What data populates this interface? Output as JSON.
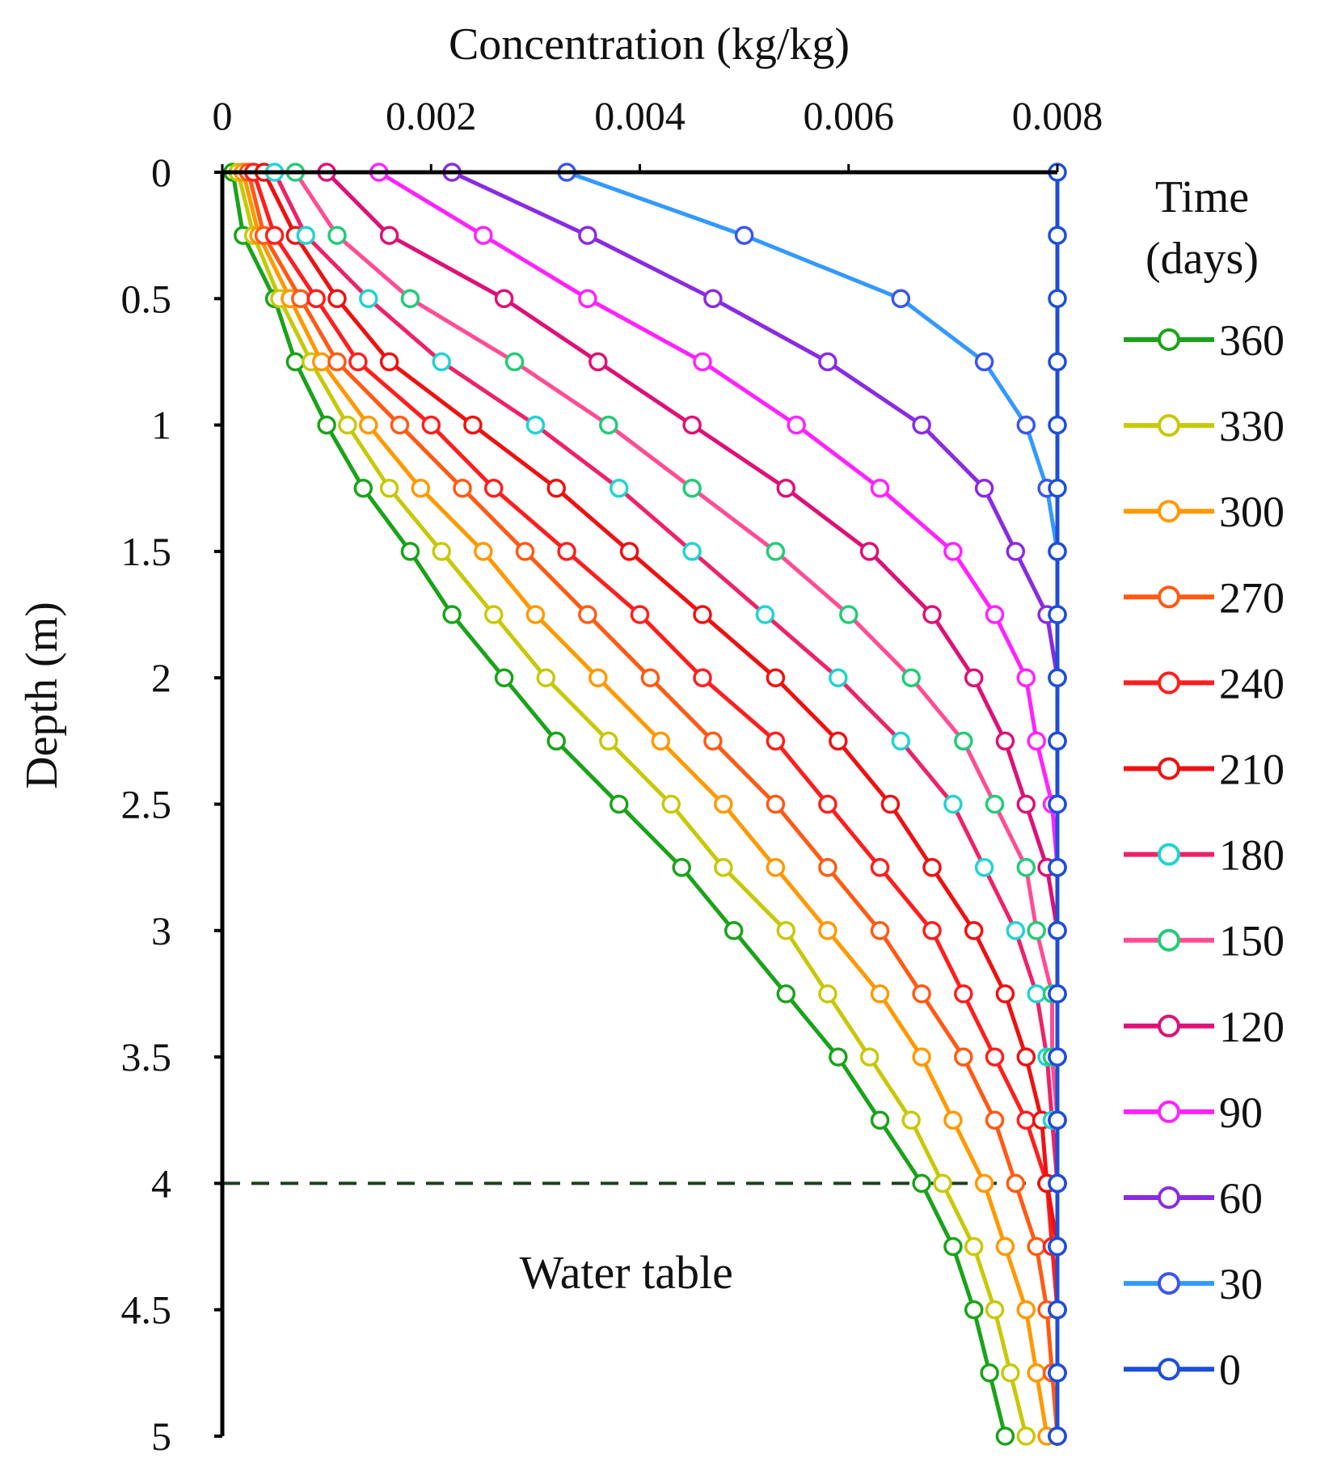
{
  "chart_data": {
    "type": "line",
    "title": "",
    "xlabel": "Concentration (kg/kg)",
    "ylabel": "Depth (m)",
    "xlim": [
      0,
      0.008
    ],
    "ylim": [
      0,
      5
    ],
    "x_ticks": [
      {
        "value": 0,
        "label": "0"
      },
      {
        "value": 0.002,
        "label": "0.002"
      },
      {
        "value": 0.004,
        "label": "0.004"
      },
      {
        "value": 0.006,
        "label": "0.006"
      },
      {
        "value": 0.008,
        "label": "0.008"
      }
    ],
    "y_ticks": [
      {
        "value": 0,
        "label": "0"
      },
      {
        "value": 0.5,
        "label": "0.5"
      },
      {
        "value": 1,
        "label": "1"
      },
      {
        "value": 1.5,
        "label": "1.5"
      },
      {
        "value": 2,
        "label": "2"
      },
      {
        "value": 2.5,
        "label": "2.5"
      },
      {
        "value": 3,
        "label": "3"
      },
      {
        "value": 3.5,
        "label": "3.5"
      },
      {
        "value": 4,
        "label": "4"
      },
      {
        "value": 4.5,
        "label": "4.5"
      },
      {
        "value": 5,
        "label": "5"
      }
    ],
    "legend_title": [
      "Time",
      "(days)"
    ],
    "legend_position": "right",
    "depths": [
      0,
      0.25,
      0.5,
      0.75,
      1,
      1.25,
      1.5,
      1.75,
      2,
      2.25,
      2.5,
      2.75,
      3,
      3.25,
      3.5,
      3.75,
      4,
      4.25,
      4.5,
      4.75,
      5
    ],
    "water_table": {
      "depth": 4,
      "label": "Water table",
      "color": "#1f3f1f"
    },
    "series": [
      {
        "name": "360",
        "color": "#1aa31a",
        "marker_color": "#1aa31a",
        "values": [
          0.0001,
          0.0002,
          0.0005,
          0.0007,
          0.001,
          0.00135,
          0.0018,
          0.0022,
          0.0027,
          0.0032,
          0.0038,
          0.0044,
          0.0049,
          0.0054,
          0.0059,
          0.0063,
          0.0067,
          0.007,
          0.0072,
          0.00735,
          0.0075
        ]
      },
      {
        "name": "330",
        "color": "#c8c80a",
        "marker_color": "#c8c80a",
        "values": [
          0.00015,
          0.0003,
          0.00055,
          0.00085,
          0.0012,
          0.0016,
          0.0021,
          0.0026,
          0.0031,
          0.0037,
          0.0043,
          0.0048,
          0.0054,
          0.0058,
          0.0062,
          0.0066,
          0.0069,
          0.0072,
          0.0074,
          0.00755,
          0.0077
        ]
      },
      {
        "name": "300",
        "color": "#ff9900",
        "marker_color": "#ff9900",
        "values": [
          0.0002,
          0.00035,
          0.00065,
          0.00095,
          0.0014,
          0.0019,
          0.0025,
          0.003,
          0.0036,
          0.0042,
          0.0048,
          0.0053,
          0.0058,
          0.0063,
          0.0067,
          0.007,
          0.0073,
          0.0075,
          0.0077,
          0.0078,
          0.0079
        ]
      },
      {
        "name": "270",
        "color": "#ff5a14",
        "marker_color": "#ff5a14",
        "values": [
          0.00025,
          0.0004,
          0.00075,
          0.0011,
          0.0017,
          0.0023,
          0.0029,
          0.0035,
          0.0041,
          0.0047,
          0.0053,
          0.0058,
          0.0063,
          0.0067,
          0.0071,
          0.0074,
          0.0076,
          0.0078,
          0.0079,
          0.00795,
          0.008
        ]
      },
      {
        "name": "240",
        "color": "#ff1e1e",
        "marker_color": "#ff1e1e",
        "values": [
          0.0003,
          0.0005,
          0.0009,
          0.0013,
          0.002,
          0.0026,
          0.0033,
          0.004,
          0.0046,
          0.0053,
          0.0058,
          0.0063,
          0.0068,
          0.0071,
          0.0074,
          0.0077,
          0.0079,
          0.00795,
          0.008,
          0.008,
          0.008
        ]
      },
      {
        "name": "210",
        "color": "#ee1111",
        "marker_color": "#ee1111",
        "values": [
          0.0004,
          0.0007,
          0.0011,
          0.0016,
          0.0024,
          0.0032,
          0.0039,
          0.0046,
          0.0053,
          0.0059,
          0.0064,
          0.0068,
          0.0072,
          0.0075,
          0.0077,
          0.00785,
          0.0079,
          0.008,
          0.008,
          0.008,
          0.008
        ]
      },
      {
        "name": "180",
        "color": "#ee2266",
        "marker_color": "#22d3d3",
        "values": [
          0.0005,
          0.0008,
          0.0014,
          0.0021,
          0.003,
          0.0038,
          0.0045,
          0.0052,
          0.0059,
          0.0065,
          0.007,
          0.0073,
          0.0076,
          0.0078,
          0.0079,
          0.00795,
          0.008,
          0.008,
          0.008,
          0.008,
          0.008
        ]
      },
      {
        "name": "150",
        "color": "#ff4d94",
        "marker_color": "#22cc77",
        "values": [
          0.0007,
          0.0011,
          0.0018,
          0.0028,
          0.0037,
          0.0045,
          0.0053,
          0.006,
          0.0066,
          0.0071,
          0.0074,
          0.0077,
          0.0078,
          0.00795,
          0.00795,
          0.008,
          0.008,
          0.008,
          0.008,
          0.008,
          0.008
        ]
      },
      {
        "name": "120",
        "color": "#dd1177",
        "marker_color": "#dd1177",
        "values": [
          0.001,
          0.0016,
          0.0027,
          0.0036,
          0.0045,
          0.0054,
          0.0062,
          0.0068,
          0.0072,
          0.0075,
          0.0077,
          0.0079,
          0.008,
          0.008,
          0.008,
          0.008,
          0.008,
          0.008,
          0.008,
          0.008,
          0.008
        ]
      },
      {
        "name": "90",
        "color": "#ff22ff",
        "marker_color": "#ff22ff",
        "values": [
          0.0015,
          0.0025,
          0.0035,
          0.0046,
          0.0055,
          0.0063,
          0.007,
          0.0074,
          0.0077,
          0.0078,
          0.00795,
          0.008,
          0.008,
          0.008,
          0.008,
          0.008,
          0.008,
          0.008,
          0.008,
          0.008,
          0.008
        ]
      },
      {
        "name": "60",
        "color": "#8a2be2",
        "marker_color": "#8a2be2",
        "values": [
          0.0022,
          0.0035,
          0.0047,
          0.0058,
          0.0067,
          0.0073,
          0.0076,
          0.0079,
          0.008,
          0.008,
          0.008,
          0.008,
          0.008,
          0.008,
          0.008,
          0.008,
          0.008,
          0.008,
          0.008,
          0.008,
          0.008
        ]
      },
      {
        "name": "30",
        "color": "#3399ff",
        "marker_color": "#3a56ee",
        "values": [
          0.0033,
          0.005,
          0.0065,
          0.0073,
          0.0077,
          0.0079,
          0.008,
          0.008,
          0.008,
          0.008,
          0.008,
          0.008,
          0.008,
          0.008,
          0.008,
          0.008,
          0.008,
          0.008,
          0.008,
          0.008,
          0.008
        ]
      },
      {
        "name": "0",
        "color": "#1c4fd8",
        "marker_color": "#1c4fd8",
        "values": [
          0.008,
          0.008,
          0.008,
          0.008,
          0.008,
          0.008,
          0.008,
          0.008,
          0.008,
          0.008,
          0.008,
          0.008,
          0.008,
          0.008,
          0.008,
          0.008,
          0.008,
          0.008,
          0.008,
          0.008,
          0.008
        ]
      }
    ]
  }
}
